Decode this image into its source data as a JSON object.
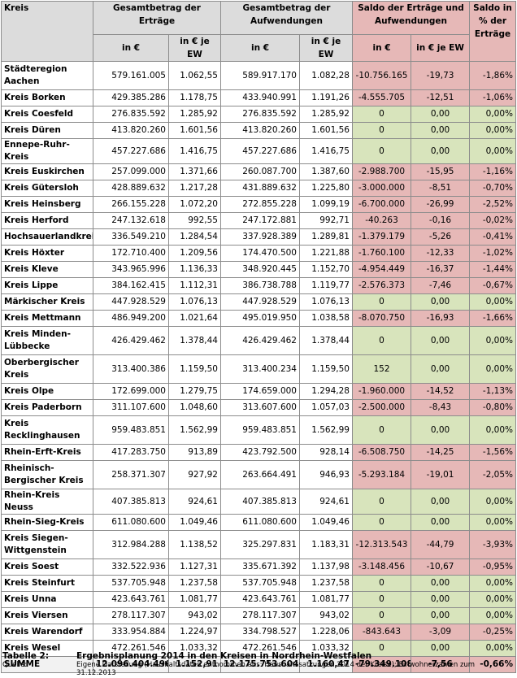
{
  "header": {
    "kreis": "Kreis",
    "ertraege_group": "Gesamtbetrag der Erträge",
    "aufwendungen_group": "Gesamtbetrag der Aufwendungen",
    "saldo_group": "Saldo der Erträge und Aufwendungen",
    "saldo_pct": "Saldo in % der Erträge",
    "sub_eur": "in €",
    "sub_ew": "in € je EW"
  },
  "rows": [
    {
      "name": "Städteregion Aachen",
      "e_eur": "579.161.005",
      "e_ew": "1.062,55",
      "a_eur": "589.917.170",
      "a_ew": "1.082,28",
      "s_eur": "-10.756.165",
      "s_ew": "-19,73",
      "pct": "-1,86%",
      "neg": true,
      "tall": true
    },
    {
      "name": "Kreis Borken",
      "e_eur": "429.385.286",
      "e_ew": "1.178,75",
      "a_eur": "433.940.991",
      "a_ew": "1.191,26",
      "s_eur": "-4.555.705",
      "s_ew": "-12,51",
      "pct": "-1,06%",
      "neg": true
    },
    {
      "name": "Kreis Coesfeld",
      "e_eur": "276.835.592",
      "e_ew": "1.285,92",
      "a_eur": "276.835.592",
      "a_ew": "1.285,92",
      "s_eur": "0",
      "s_ew": "0,00",
      "pct": "0,00%",
      "neg": false
    },
    {
      "name": "Kreis Düren",
      "e_eur": "413.820.260",
      "e_ew": "1.601,56",
      "a_eur": "413.820.260",
      "a_ew": "1.601,56",
      "s_eur": "0",
      "s_ew": "0,00",
      "pct": "0,00%",
      "neg": false
    },
    {
      "name": "Ennepe-Ruhr-Kreis",
      "e_eur": "457.227.686",
      "e_ew": "1.416,75",
      "a_eur": "457.227.686",
      "a_ew": "1.416,75",
      "s_eur": "0",
      "s_ew": "0,00",
      "pct": "0,00%",
      "neg": false
    },
    {
      "name": "Kreis Euskirchen",
      "e_eur": "257.099.000",
      "e_ew": "1.371,66",
      "a_eur": "260.087.700",
      "a_ew": "1.387,60",
      "s_eur": "-2.988.700",
      "s_ew": "-15,95",
      "pct": "-1,16%",
      "neg": true
    },
    {
      "name": "Kreis Gütersloh",
      "e_eur": "428.889.632",
      "e_ew": "1.217,28",
      "a_eur": "431.889.632",
      "a_ew": "1.225,80",
      "s_eur": "-3.000.000",
      "s_ew": "-8,51",
      "pct": "-0,70%",
      "neg": true
    },
    {
      "name": "Kreis Heinsberg",
      "e_eur": "266.155.228",
      "e_ew": "1.072,20",
      "a_eur": "272.855.228",
      "a_ew": "1.099,19",
      "s_eur": "-6.700.000",
      "s_ew": "-26,99",
      "pct": "-2,52%",
      "neg": true
    },
    {
      "name": "Kreis Herford",
      "e_eur": "247.132.618",
      "e_ew": "992,55",
      "a_eur": "247.172.881",
      "a_ew": "992,71",
      "s_eur": "-40.263",
      "s_ew": "-0,16",
      "pct": "-0,02%",
      "neg": true
    },
    {
      "name": "Hochsauerlandkreis",
      "e_eur": "336.549.210",
      "e_ew": "1.284,54",
      "a_eur": "337.928.389",
      "a_ew": "1.289,81",
      "s_eur": "-1.379.179",
      "s_ew": "-5,26",
      "pct": "-0,41%",
      "neg": true
    },
    {
      "name": "Kreis Höxter",
      "e_eur": "172.710.400",
      "e_ew": "1.209,56",
      "a_eur": "174.470.500",
      "a_ew": "1.221,88",
      "s_eur": "-1.760.100",
      "s_ew": "-12,33",
      "pct": "-1,02%",
      "neg": true
    },
    {
      "name": "Kreis Kleve",
      "e_eur": "343.965.996",
      "e_ew": "1.136,33",
      "a_eur": "348.920.445",
      "a_ew": "1.152,70",
      "s_eur": "-4.954.449",
      "s_ew": "-16,37",
      "pct": "-1,44%",
      "neg": true
    },
    {
      "name": "Kreis Lippe",
      "e_eur": "384.162.415",
      "e_ew": "1.112,31",
      "a_eur": "386.738.788",
      "a_ew": "1.119,77",
      "s_eur": "-2.576.373",
      "s_ew": "-7,46",
      "pct": "-0,67%",
      "neg": true
    },
    {
      "name": "Märkischer Kreis",
      "e_eur": "447.928.529",
      "e_ew": "1.076,13",
      "a_eur": "447.928.529",
      "a_ew": "1.076,13",
      "s_eur": "0",
      "s_ew": "0,00",
      "pct": "0,00%",
      "neg": false
    },
    {
      "name": "Kreis Mettmann",
      "e_eur": "486.949.200",
      "e_ew": "1.021,64",
      "a_eur": "495.019.950",
      "a_ew": "1.038,58",
      "s_eur": "-8.070.750",
      "s_ew": "-16,93",
      "pct": "-1,66%",
      "neg": true
    },
    {
      "name": "Kreis Minden-Lübbecke",
      "e_eur": "426.429.462",
      "e_ew": "1.378,44",
      "a_eur": "426.429.462",
      "a_ew": "1.378,44",
      "s_eur": "0",
      "s_ew": "0,00",
      "pct": "0,00%",
      "neg": false,
      "tall": true
    },
    {
      "name": "Oberbergischer Kreis",
      "e_eur": "313.400.386",
      "e_ew": "1.159,50",
      "a_eur": "313.400.234",
      "a_ew": "1.159,50",
      "s_eur": "152",
      "s_ew": "0,00",
      "pct": "0,00%",
      "neg": false,
      "tall": true
    },
    {
      "name": "Kreis Olpe",
      "e_eur": "172.699.000",
      "e_ew": "1.279,75",
      "a_eur": "174.659.000",
      "a_ew": "1.294,28",
      "s_eur": "-1.960.000",
      "s_ew": "-14,52",
      "pct": "-1,13%",
      "neg": true
    },
    {
      "name": "Kreis Paderborn",
      "e_eur": "311.107.600",
      "e_ew": "1.048,60",
      "a_eur": "313.607.600",
      "a_ew": "1.057,03",
      "s_eur": "-2.500.000",
      "s_ew": "-8,43",
      "pct": "-0,80%",
      "neg": true
    },
    {
      "name": "Kreis Recklinghausen",
      "e_eur": "959.483.851",
      "e_ew": "1.562,99",
      "a_eur": "959.483.851",
      "a_ew": "1.562,99",
      "s_eur": "0",
      "s_ew": "0,00",
      "pct": "0,00%",
      "neg": false,
      "tall": true
    },
    {
      "name": "Rhein-Erft-Kreis",
      "e_eur": "417.283.750",
      "e_ew": "913,89",
      "a_eur": "423.792.500",
      "a_ew": "928,14",
      "s_eur": "-6.508.750",
      "s_ew": "-14,25",
      "pct": "-1,56%",
      "neg": true
    },
    {
      "name": "Rheinisch-Bergischer Kreis",
      "e_eur": "258.371.307",
      "e_ew": "927,92",
      "a_eur": "263.664.491",
      "a_ew": "946,93",
      "s_eur": "-5.293.184",
      "s_ew": "-19,01",
      "pct": "-2,05%",
      "neg": true,
      "tall": true
    },
    {
      "name": "Rhein-Kreis Neuss",
      "e_eur": "407.385.813",
      "e_ew": "924,61",
      "a_eur": "407.385.813",
      "a_ew": "924,61",
      "s_eur": "0",
      "s_ew": "0,00",
      "pct": "0,00%",
      "neg": false
    },
    {
      "name": "Rhein-Sieg-Kreis",
      "e_eur": "611.080.600",
      "e_ew": "1.049,46",
      "a_eur": "611.080.600",
      "a_ew": "1.049,46",
      "s_eur": "0",
      "s_ew": "0,00",
      "pct": "0,00%",
      "neg": false
    },
    {
      "name": "Kreis Siegen-Wittgenstein",
      "e_eur": "312.984.288",
      "e_ew": "1.138,52",
      "a_eur": "325.297.831",
      "a_ew": "1.183,31",
      "s_eur": "-12.313.543",
      "s_ew": "-44,79",
      "pct": "-3,93%",
      "neg": true,
      "tall": true
    },
    {
      "name": "Kreis Soest",
      "e_eur": "332.522.936",
      "e_ew": "1.127,31",
      "a_eur": "335.671.392",
      "a_ew": "1.137,98",
      "s_eur": "-3.148.456",
      "s_ew": "-10,67",
      "pct": "-0,95%",
      "neg": true
    },
    {
      "name": "Kreis Steinfurt",
      "e_eur": "537.705.948",
      "e_ew": "1.237,58",
      "a_eur": "537.705.948",
      "a_ew": "1.237,58",
      "s_eur": "0",
      "s_ew": "0,00",
      "pct": "0,00%",
      "neg": false
    },
    {
      "name": "Kreis Unna",
      "e_eur": "423.643.761",
      "e_ew": "1.081,77",
      "a_eur": "423.643.761",
      "a_ew": "1.081,77",
      "s_eur": "0",
      "s_ew": "0,00",
      "pct": "0,00%",
      "neg": false
    },
    {
      "name": "Kreis Viersen",
      "e_eur": "278.117.307",
      "e_ew": "943,02",
      "a_eur": "278.117.307",
      "a_ew": "943,02",
      "s_eur": "0",
      "s_ew": "0,00",
      "pct": "0,00%",
      "neg": false
    },
    {
      "name": "Kreis Warendorf",
      "e_eur": "333.954.884",
      "e_ew": "1.224,97",
      "a_eur": "334.798.527",
      "a_ew": "1.228,06",
      "s_eur": "-843.643",
      "s_ew": "-3,09",
      "pct": "-0,25%",
      "neg": true
    },
    {
      "name": "Kreis Wesel",
      "e_eur": "472.261.546",
      "e_ew": "1.033,32",
      "a_eur": "472.261.546",
      "a_ew": "1.033,32",
      "s_eur": "0",
      "s_ew": "0,00",
      "pct": "0,00%",
      "neg": false
    }
  ],
  "sum": {
    "name": "SUMME",
    "e_eur": "12.096.404.496",
    "e_ew": "1.152,91",
    "a_eur": "12.175.753.604",
    "a_ew": "1.160,47",
    "s_eur": "-79.349.108",
    "s_ew": "-7,56",
    "pct": "-0,66%"
  },
  "caption": {
    "label": "Tabelle 2:",
    "title": "Ergebnisplanung 2014 in den Kreisen in Nordrhein-Westfalen",
    "source_label": "Quelle:",
    "source_text": "Eigene Darstellung (Haushaltsdaten entnommen aus: Haushaltssatzungen 2014 der Kreise); Einwohnerzahlen zum 31.12.2013"
  },
  "colors": {
    "negative": "#e6b8b7",
    "balanced": "#d8e4bc",
    "header": "#dcdcdc"
  }
}
